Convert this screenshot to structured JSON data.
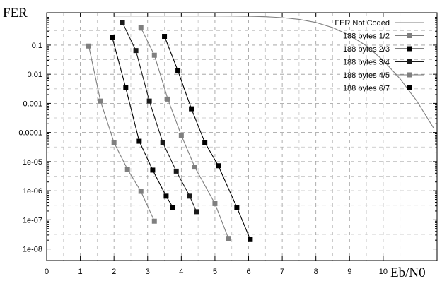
{
  "chart_data": {
    "type": "line",
    "ylabel": "FER",
    "xlabel": "Eb/N0",
    "x_ticks": [
      "0",
      "1",
      "2",
      "3",
      "4",
      "5",
      "6",
      "7",
      "8",
      "9",
      "10"
    ],
    "y_scale": "log",
    "y_ticks": [
      {
        "value": 0.1,
        "label": "0.1"
      },
      {
        "value": 0.01,
        "label": "0.01"
      },
      {
        "value": 0.001,
        "label": "0.001"
      },
      {
        "value": 0.0001,
        "label": "0.0001"
      },
      {
        "value": 1e-05,
        "label": "1e-05"
      },
      {
        "value": 1e-06,
        "label": "1e-06"
      },
      {
        "value": 1e-07,
        "label": "1e-07"
      },
      {
        "value": 1e-08,
        "label": "1e-08"
      }
    ],
    "xlim": [
      0,
      11.6
    ],
    "ylim": [
      4e-09,
      1.3
    ],
    "grid": true,
    "legend_position": "top-right",
    "series": [
      {
        "name": "FER Not Coded",
        "color": "#7f7f7f",
        "marker": "none",
        "x": [
          2.0,
          3.0,
          3.5,
          4.0,
          4.5,
          5.0,
          5.5,
          6.0,
          6.5,
          7.0,
          7.5,
          8.0,
          8.5,
          9.0,
          9.5,
          10.0,
          10.5,
          11.0,
          11.5
        ],
        "y": [
          1.0,
          1.0,
          1.0,
          1.0,
          1.0,
          0.999,
          0.995,
          0.98,
          0.945,
          0.88,
          0.77,
          0.6,
          0.4,
          0.22,
          0.094,
          0.03,
          0.007,
          0.0012,
          0.00014
        ]
      },
      {
        "name": "188 bytes 1/2",
        "color": "#7f7f7f",
        "marker": "square",
        "x": [
          1.25,
          1.6,
          2.0,
          2.4,
          2.8,
          3.2
        ],
        "y": [
          0.093,
          0.0012,
          4.5e-05,
          5.5e-06,
          9.5e-07,
          9e-08
        ]
      },
      {
        "name": "188 bytes 2/3",
        "color": "#000000",
        "marker": "square",
        "x": [
          1.95,
          2.35,
          2.75,
          3.15,
          3.55,
          3.75
        ],
        "y": [
          0.18,
          0.0034,
          5e-05,
          5.1e-06,
          6.5e-07,
          2.7e-07
        ]
      },
      {
        "name": "188 bytes 3/4",
        "color": "#1a1a1a",
        "marker": "square",
        "x": [
          2.25,
          2.65,
          3.05,
          3.45,
          3.85,
          4.25,
          4.45
        ],
        "y": [
          0.6,
          0.065,
          0.0012,
          4.5e-05,
          4.7e-06,
          6.5e-07,
          1.9e-07
        ]
      },
      {
        "name": "188 bytes 4/5",
        "color": "#7f7f7f",
        "marker": "square",
        "x": [
          2.8,
          3.2,
          3.6,
          4.0,
          4.4,
          5.0,
          5.4
        ],
        "y": [
          0.4,
          0.045,
          0.0014,
          8e-05,
          6.5e-06,
          3.6e-07,
          2.3e-08
        ]
      },
      {
        "name": "188 bytes 6/7",
        "color": "#000000",
        "marker": "square",
        "x": [
          3.5,
          3.9,
          4.3,
          4.7,
          5.1,
          5.65,
          6.05
        ],
        "y": [
          0.2,
          0.013,
          0.00065,
          4.5e-05,
          7.2e-06,
          2.7e-07,
          2.1e-08
        ]
      }
    ]
  }
}
